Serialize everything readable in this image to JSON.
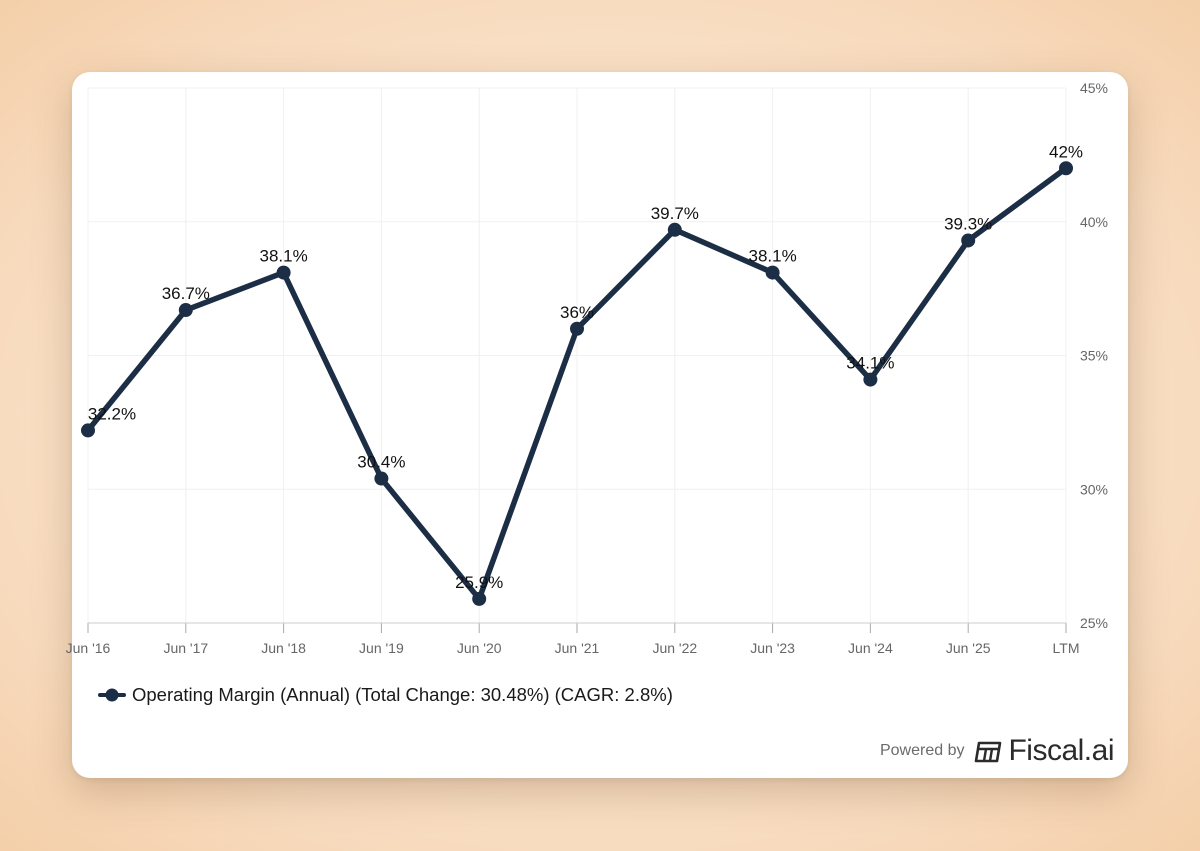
{
  "chart_data": {
    "type": "line",
    "categories": [
      "Jun '16",
      "Jun '17",
      "Jun '18",
      "Jun '19",
      "Jun '20",
      "Jun '21",
      "Jun '22",
      "Jun '23",
      "Jun '24",
      "Jun '25",
      "LTM"
    ],
    "series": [
      {
        "name": "Operating Margin (Annual) (Total Change: 30.48%) (CAGR: 2.8%)",
        "values": [
          32.2,
          36.7,
          38.1,
          30.4,
          25.9,
          36,
          39.7,
          38.1,
          34.1,
          39.3,
          42
        ],
        "labels": [
          "32.2%",
          "36.7%",
          "38.1%",
          "30.4%",
          "25.9%",
          "36%",
          "39.7%",
          "38.1%",
          "34.1%",
          "39.3%",
          "42%"
        ]
      }
    ],
    "ylim": [
      25,
      45
    ],
    "yticks": [
      25,
      30,
      35,
      40,
      45
    ],
    "ytick_labels": [
      "25%",
      "30%",
      "35%",
      "40%",
      "45%"
    ],
    "grid": true,
    "legend_position": "bottom-left",
    "colors": {
      "line": "#1c2e45",
      "grid": "#f0f0f0",
      "axis": "#cccccc"
    }
  },
  "footer": {
    "powered_by": "Powered by",
    "brand": "Fiscal.ai"
  }
}
